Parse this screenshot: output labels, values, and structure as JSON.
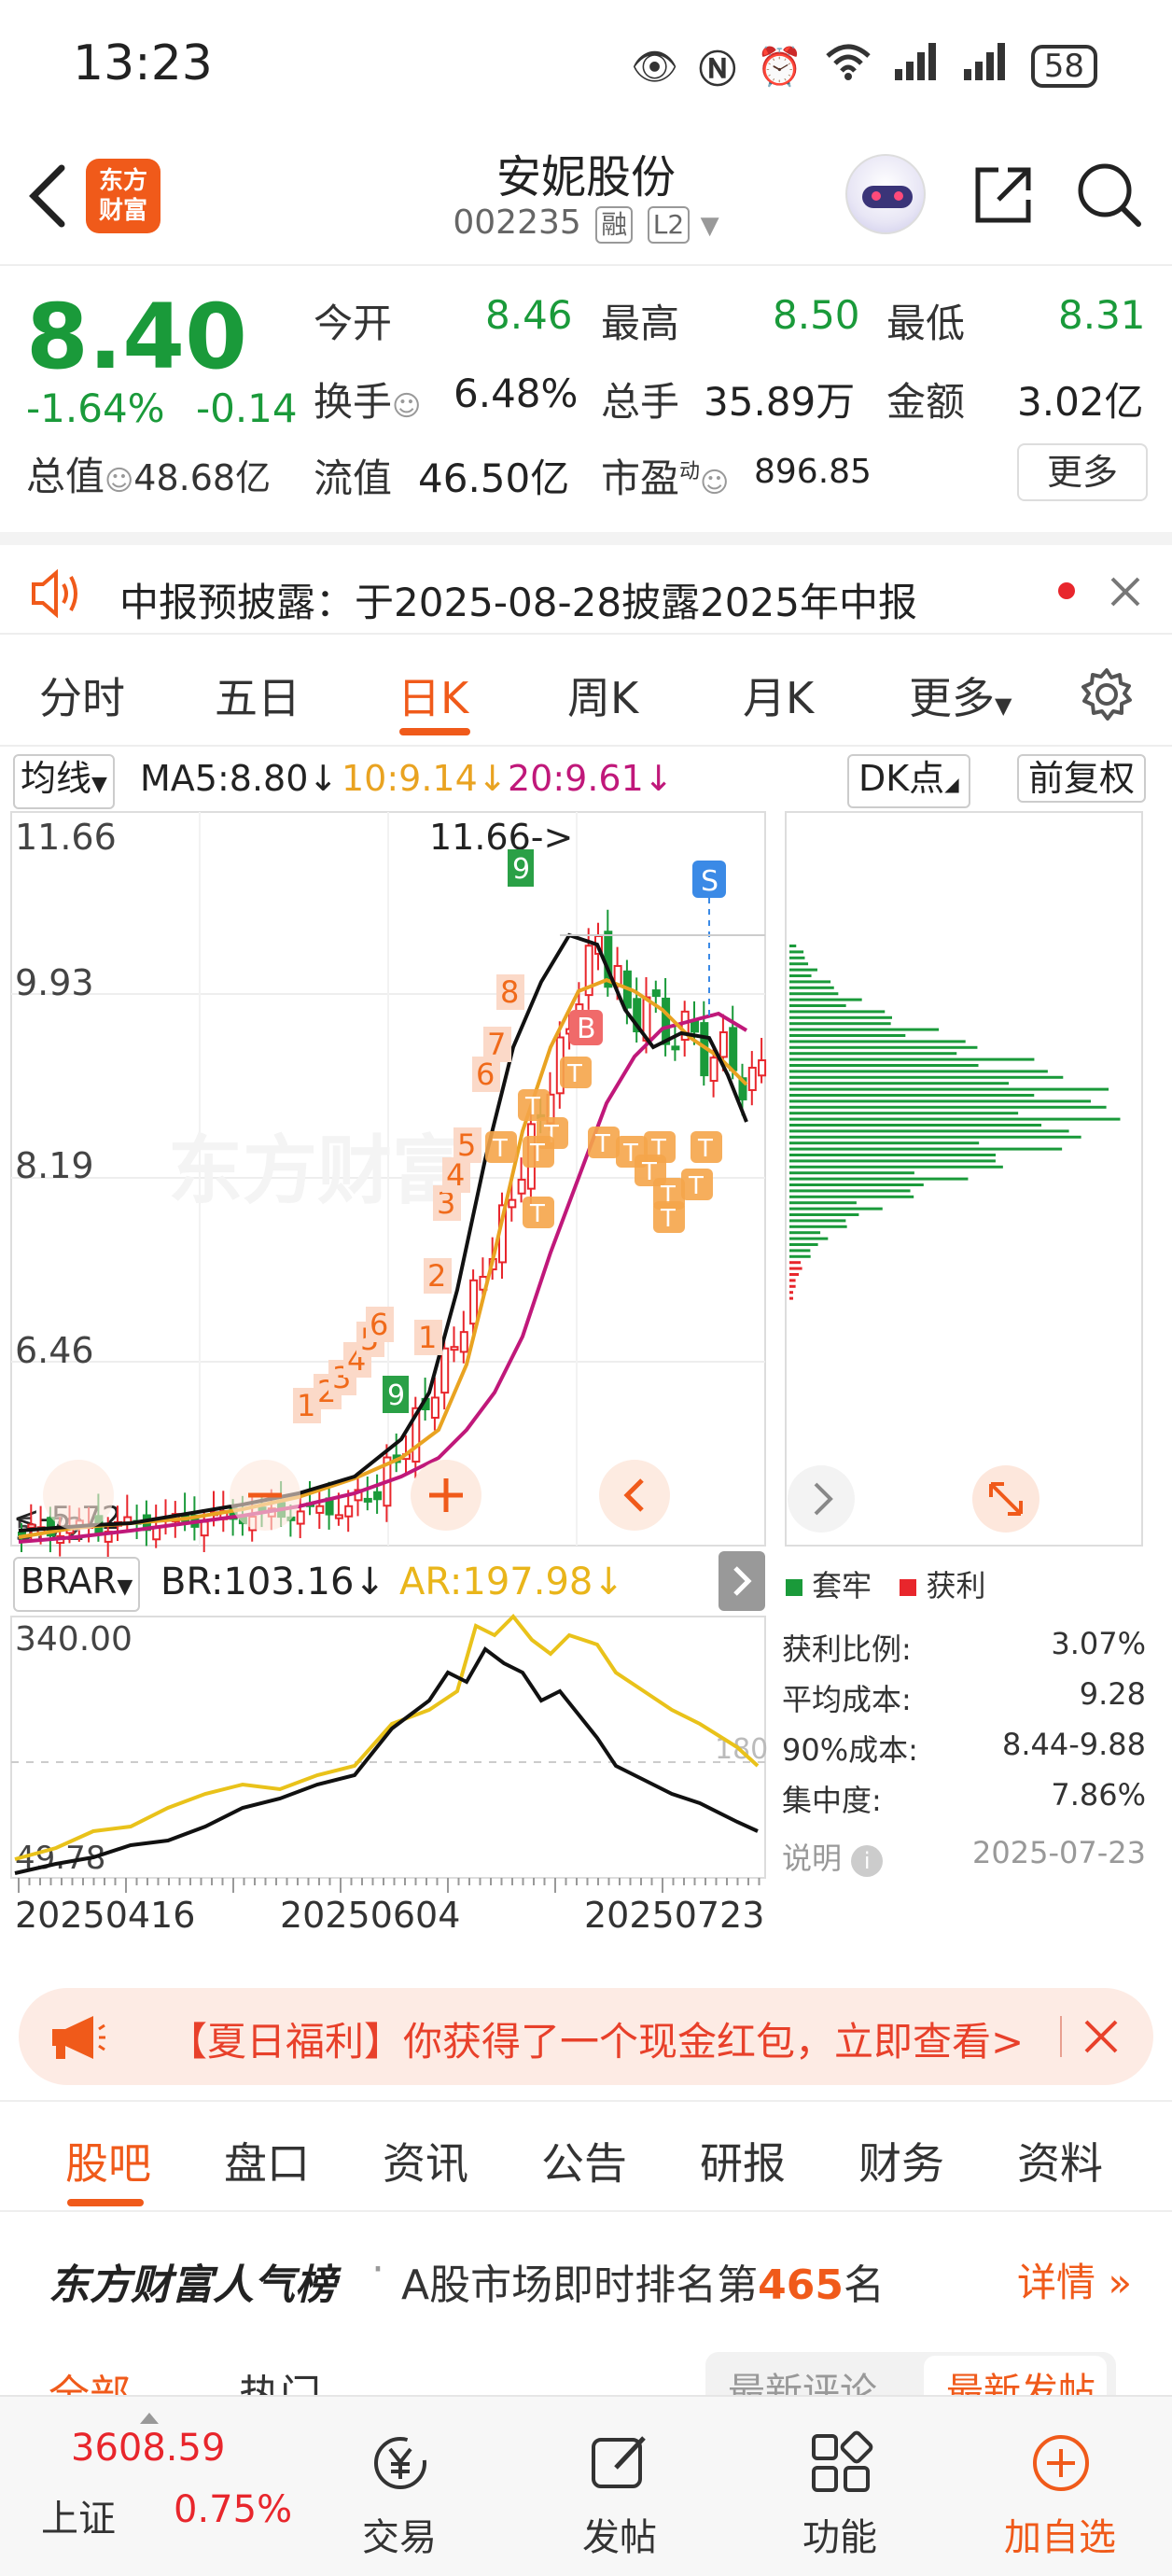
{
  "status_bar": {
    "time": "13:23",
    "battery": "58"
  },
  "header": {
    "logo_text_line1": "东方",
    "logo_text_line2": "财富",
    "stock_name": "安妮股份",
    "stock_code": "002235",
    "tag_rong": "融",
    "tag_l2": "L2"
  },
  "quote": {
    "price": "8.40",
    "change_pct": "-1.64%",
    "change_amt": "-0.14",
    "total_value_label": "总值",
    "total_value": "48.68亿",
    "open_label": "今开",
    "open": "8.46",
    "high_label": "最高",
    "high": "8.50",
    "low_label": "最低",
    "low": "8.31",
    "turnover_label": "换手",
    "turnover": "6.48%",
    "volume_label": "总手",
    "volume": "35.89万",
    "amount_label": "金额",
    "amount": "3.02亿",
    "float_label": "流值",
    "float_value": "46.50亿",
    "pe_label": "市盈",
    "pe_sup": "动",
    "pe": "896.85",
    "more_label": "更多"
  },
  "notice": {
    "text": "中报预披露：于2025-08-28披露2025年中报"
  },
  "period_tabs": [
    "分时",
    "五日",
    "日K",
    "周K",
    "月K",
    "更多"
  ],
  "period_active": 2,
  "ma_row": {
    "selector": "均线",
    "ma5": "MA5:8.80↓",
    "ma10": "10:9.14↓",
    "ma20": "20:9.61↓",
    "dk_label": "DK点",
    "fq_label": "前复权"
  },
  "kline": {
    "y_labels": [
      "11.66",
      "9.93",
      "8.19",
      "6.46"
    ],
    "high_marker": "11.66->",
    "low_marker": "<-5.72",
    "low_axis": "5.72",
    "watermark": "东方财富",
    "s_marker": "S",
    "b_marker": "B",
    "td_numbers": [
      "1",
      "2",
      "3",
      "4",
      "5",
      "6",
      "7",
      "8",
      "9"
    ]
  },
  "indicator": {
    "selector": "BRAR",
    "br": "BR:103.16↓",
    "ar": "AR:197.98↓",
    "y_top": "340.00",
    "y_bottom": "49.78",
    "ref_line": "180"
  },
  "dates": [
    "20250416",
    "20250604",
    "20250723"
  ],
  "chip": {
    "legend_trapped": "套牢",
    "legend_profit": "获利",
    "profit_ratio_label": "获利比例:",
    "profit_ratio": "3.07%",
    "avg_cost_label": "平均成本:",
    "avg_cost": "9.28",
    "cost90_label": "90%成本:",
    "cost90": "8.44-9.88",
    "concentration_label": "集中度:",
    "concentration": "7.86%",
    "explain_label": "说明",
    "date": "2025-07-23"
  },
  "banner": {
    "text": "【夏日福利】你获得了一个现金红包，立即查看>"
  },
  "section_tabs": [
    "股吧",
    "盘口",
    "资讯",
    "公告",
    "研报",
    "财务",
    "资料"
  ],
  "popularity": {
    "title": "东方财富人气榜",
    "text_prefix": "A股市场即时排名第",
    "rank": "465",
    "text_suffix": "名",
    "more": "详情"
  },
  "partial_row": {
    "tab1": "全部",
    "tab2": "热门",
    "sort1": "最新评论",
    "sort2": "最新发帖"
  },
  "bottom_nav": {
    "index_value": "3608.59",
    "index_name": "上证",
    "index_change": "0.75%",
    "trade": "交易",
    "post": "发帖",
    "function": "功能",
    "add_watch": "加自选"
  },
  "colors": {
    "up": "#e8262c",
    "down": "#1a9a3a",
    "accent": "#f05a1a",
    "ma10": "#e9a321",
    "ma20": "#c0187a"
  }
}
